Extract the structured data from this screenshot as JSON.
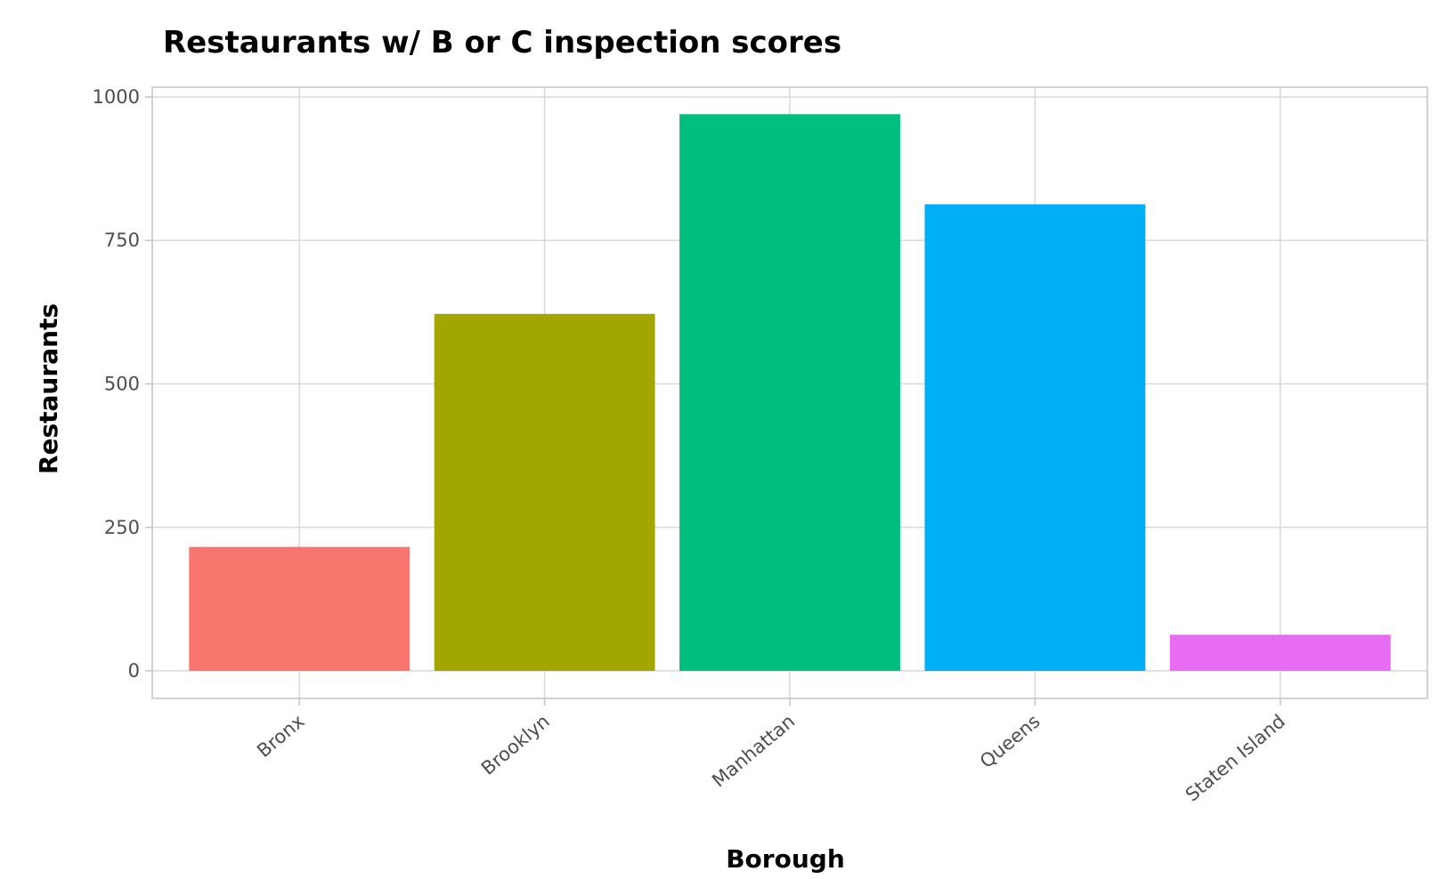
{
  "chart_data": {
    "type": "bar",
    "title": "Restaurants w/ B or C inspection scores",
    "xlabel": "Borough",
    "ylabel": "Restaurants",
    "categories": [
      "Bronx",
      "Brooklyn",
      "Manhattan",
      "Queens",
      "Staten Island"
    ],
    "values": [
      216,
      622,
      970,
      813,
      63
    ],
    "colors": [
      "#F8766D",
      "#A3A500",
      "#00BF7D",
      "#00B0F6",
      "#E76BF3"
    ],
    "yticks": [
      0,
      250,
      500,
      750,
      1000
    ],
    "ytick_labels": [
      "0",
      "250",
      "500",
      "750",
      "1000"
    ],
    "ylim": [
      -48,
      1017
    ],
    "grid": true,
    "legend": "none"
  }
}
